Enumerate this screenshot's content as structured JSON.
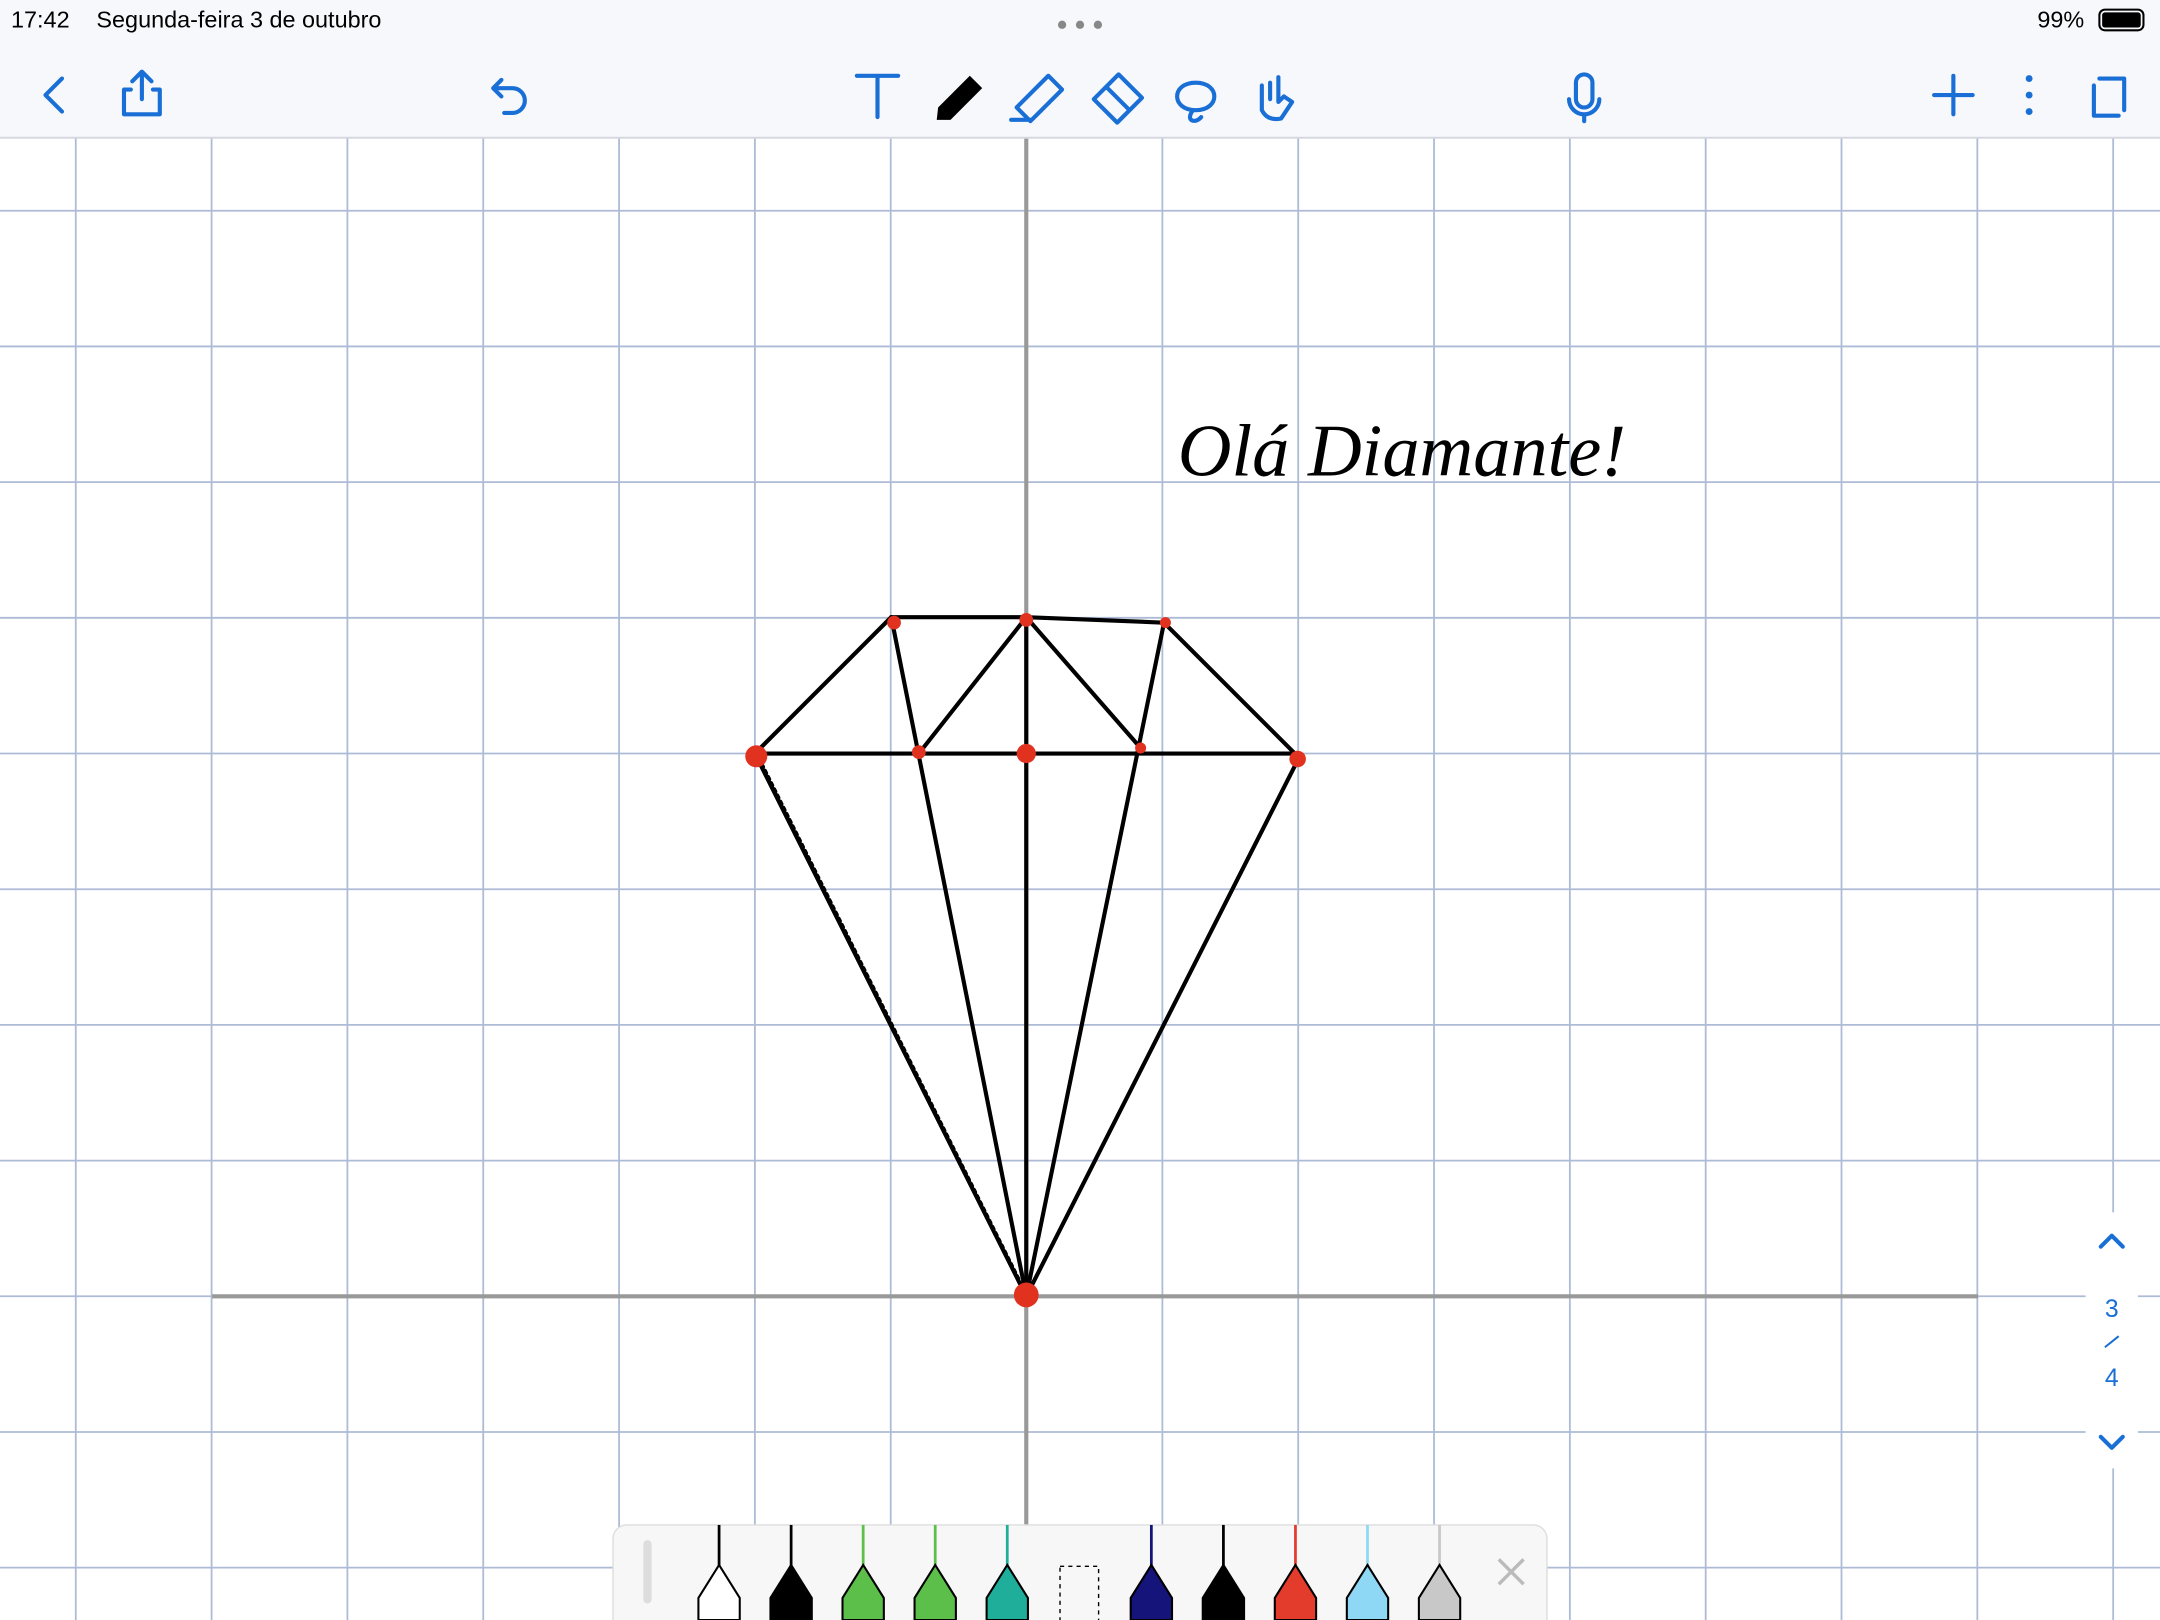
{
  "status_bar": {
    "time": "17:42",
    "date": "Segunda-feira 3 de outubro",
    "battery": "99%"
  },
  "canvas": {
    "handwriting": "Olá Diamante!"
  },
  "page_indicator": {
    "current": "3",
    "total": "4"
  }
}
